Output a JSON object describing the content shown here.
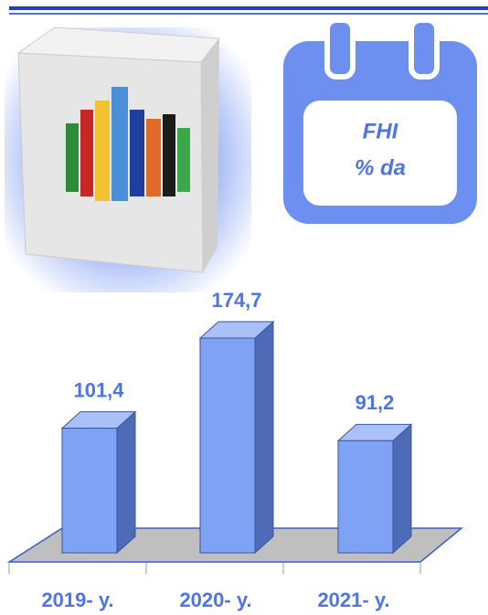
{
  "chart_data": {
    "type": "bar3d",
    "categories": [
      "2019- y.",
      "2020- y.",
      "2021- y."
    ],
    "values": [
      101.4,
      174.7,
      91.2
    ],
    "value_labels": [
      "101,4",
      "174,7",
      "91,2"
    ],
    "color": "#7fa2f5",
    "annotation": [
      "FHI",
      "% da"
    ]
  }
}
